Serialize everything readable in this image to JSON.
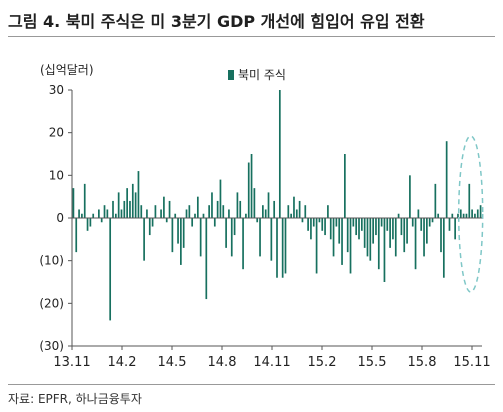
{
  "title": "그림 4. 북미 주식은 미 3분기 GDP 개선에 힘입어 유입 전환",
  "source": "자료: EPFR, 하나금융투자",
  "colors": {
    "bar": "#17705f",
    "highlight": "#7fc7c7",
    "axis": "#555555",
    "text": "#222222"
  },
  "chart_data": {
    "type": "bar",
    "title": "",
    "ylabel": "(십억달러)",
    "xlabel": "",
    "ylim": [
      -30,
      30
    ],
    "yticks": [
      30,
      20,
      10,
      0,
      -10,
      -20,
      -30
    ],
    "ytick_labels": [
      "30",
      "20",
      "10",
      "0",
      "(10)",
      "(20)",
      "(30)"
    ],
    "xtick_labels": [
      "13.11",
      "14.2",
      "14.5",
      "14.8",
      "14.11",
      "15.2",
      "15.5",
      "15.8",
      "15.11"
    ],
    "legend": "top-center",
    "grid": false,
    "highlight": "last weeks (circled)",
    "series": [
      {
        "name": "북미 주식",
        "values": [
          7,
          -8,
          2,
          1,
          8,
          -3,
          -2,
          1,
          0,
          2,
          -1,
          3,
          2,
          -24,
          4,
          1,
          6,
          2,
          4,
          7,
          4,
          8,
          6,
          11,
          3,
          -10,
          2,
          -4,
          -2,
          3,
          0,
          2,
          5,
          -1,
          4,
          -8,
          1,
          -6,
          -11,
          -7,
          2,
          3,
          -2,
          1,
          5,
          -9,
          1,
          -19,
          3,
          6,
          -2,
          4,
          9,
          3,
          -7,
          2,
          -9,
          -4,
          6,
          4,
          -12,
          1,
          13,
          15,
          7,
          -1,
          -9,
          3,
          2,
          6,
          -10,
          4,
          -14,
          30,
          -14,
          -13,
          3,
          1,
          5,
          2,
          4,
          -1,
          3,
          -3,
          -5,
          -2,
          -13,
          -1,
          -3,
          -4,
          3,
          -5,
          -9,
          -2,
          -6,
          -11,
          15,
          -8,
          -13,
          -2,
          -4,
          -5,
          -3,
          -7,
          -9,
          -10,
          -6,
          -4,
          -12,
          -2,
          -15,
          -3,
          -7,
          -5,
          -9,
          1,
          -4,
          -8,
          -6,
          10,
          -2,
          -12,
          2,
          -3,
          -9,
          -6,
          -2,
          -1,
          8,
          1,
          -8,
          -14,
          18,
          -3,
          1,
          -5,
          1,
          2,
          1,
          1,
          8,
          2,
          1,
          2,
          3
        ]
      }
    ]
  }
}
